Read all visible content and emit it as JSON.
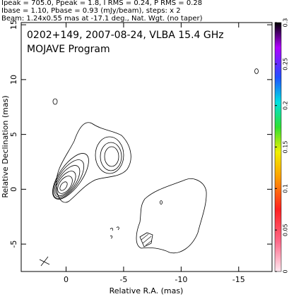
{
  "chart_data": {
    "type": "contour",
    "header": [
      "Ipeak = 705.0, Ppeak = 1.8, I RMS = 0.24, P RMS = 0.28",
      "Ibase = 1.10, Pbase = 0.93 (mJy/beam), steps: x 2",
      "Beam: 1.24x0.55 mas at -17.1 deg., Nat. Wgt. (no taper)"
    ],
    "title": "0202+149, 2007-08-24, VLBA 15.4 GHz",
    "subtitle": "MOJAVE Program",
    "xlabel": "Relative R.A. (mas)",
    "ylabel": "Relative Declination (mas)",
    "xlim": [
      3.9,
      -17.9
    ],
    "xticks": [
      0,
      -5,
      -10,
      -15
    ],
    "ylim": [
      -7.5,
      15.2
    ],
    "yticks": [
      -5,
      0,
      5,
      10,
      15
    ],
    "colorbar": {
      "lim": [
        0,
        0.3
      ],
      "ticks": [
        0,
        0.05,
        0.1,
        0.15,
        0.2,
        0.25,
        0.3
      ]
    }
  }
}
